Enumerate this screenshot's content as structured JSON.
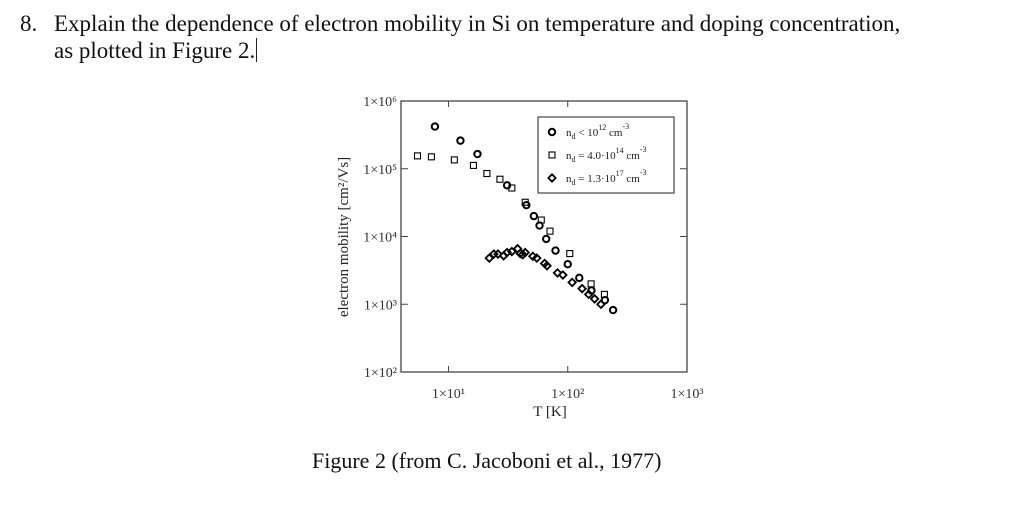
{
  "question": {
    "number": "8.",
    "line1": "Explain the dependence of electron mobility in Si on temperature and doping concentration,",
    "line2": "as plotted in Figure 2."
  },
  "caption": "Figure 2 (from C. Jacoboni et al., 1977)",
  "chart_data": {
    "type": "scatter",
    "title": "",
    "xlabel": "T [K]",
    "ylabel": "electron mobility [cm²/Vs]",
    "xscale": "log",
    "yscale": "log",
    "xlim": [
      4,
      1000
    ],
    "ylim": [
      100,
      1000000
    ],
    "xticks": [
      "1×10¹",
      "1×10²",
      "1×10³"
    ],
    "yticks": [
      "1×10²",
      "1×10³",
      "1×10⁴",
      "1×10⁵",
      "1×10⁶"
    ],
    "grid": false,
    "legend_position": "upper right",
    "series": [
      {
        "name": "n_d < 10^12 cm^-3",
        "legend": {
          "base": "n",
          "sub": "d",
          "rel": " < 10",
          "sup": "12",
          "unit": " cm",
          "unit_sup": "-3"
        },
        "marker": "circle",
        "points": [
          [
            7.7,
            420000
          ],
          [
            12.6,
            260000
          ],
          [
            17.5,
            165000
          ],
          [
            31,
            57000
          ],
          [
            45,
            29000
          ],
          [
            52,
            20000
          ],
          [
            58,
            14500
          ],
          [
            66,
            9200
          ],
          [
            79,
            6200
          ],
          [
            100,
            3900
          ],
          [
            125,
            2450
          ],
          [
            158,
            1600
          ],
          [
            205,
            1150
          ],
          [
            240,
            820
          ]
        ]
      },
      {
        "name": "n_d = 4.0·10^14 cm^-3",
        "legend": {
          "base": "n",
          "sub": "d",
          "rel": " = 4.0·10",
          "sup": "14",
          "unit": " cm",
          "unit_sup": "-3"
        },
        "marker": "square",
        "points": [
          [
            5.5,
            155000
          ],
          [
            7.2,
            150000
          ],
          [
            11.2,
            135000
          ],
          [
            16.2,
            112000
          ],
          [
            21,
            85000
          ],
          [
            27,
            70000
          ],
          [
            34,
            52000
          ],
          [
            44,
            32000
          ],
          [
            60,
            17500
          ],
          [
            71,
            12000
          ],
          [
            104,
            5600
          ],
          [
            157,
            2000
          ],
          [
            203,
            1400
          ]
        ]
      },
      {
        "name": "n_d = 1.3·10^17 cm^-3",
        "legend": {
          "base": "n",
          "sub": "d",
          "rel": " = 1.3·10",
          "sup": "17",
          "unit": " cm",
          "unit_sup": "-3"
        },
        "marker": "diamond",
        "points": [
          [
            22,
            4800
          ],
          [
            24,
            5500
          ],
          [
            26,
            5500
          ],
          [
            29,
            5200
          ],
          [
            31,
            5800
          ],
          [
            34,
            6000
          ],
          [
            38,
            6600
          ],
          [
            40,
            5600
          ],
          [
            42,
            5400
          ],
          [
            44,
            5800
          ],
          [
            51,
            5100
          ],
          [
            55,
            4800
          ],
          [
            64,
            4000
          ],
          [
            67,
            3700
          ],
          [
            82,
            2900
          ],
          [
            91,
            2700
          ],
          [
            109,
            2100
          ],
          [
            132,
            1700
          ],
          [
            150,
            1400
          ],
          [
            168,
            1200
          ],
          [
            190,
            1000
          ]
        ]
      }
    ]
  },
  "plot": {
    "frame_color": "#444444",
    "marker_color": "#000000"
  }
}
